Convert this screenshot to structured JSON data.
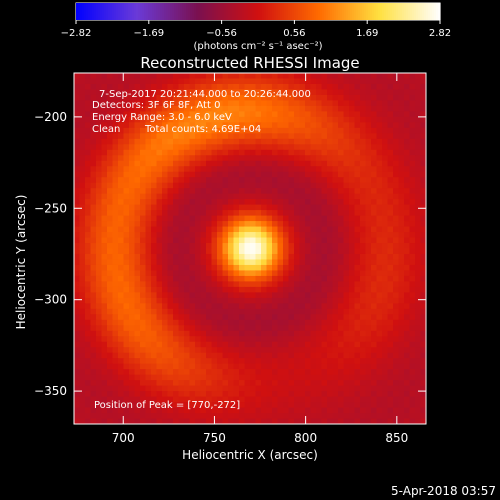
{
  "chart_data": {
    "type": "heatmap",
    "title": "Reconstructed RHESSI Image",
    "xlabel": "Heliocentric X (arcsec)",
    "ylabel": "Heliocentric Y (arcsec)",
    "xlim": [
      673,
      866
    ],
    "ylim": [
      -368,
      -176
    ],
    "x_ticks": [
      700,
      750,
      800,
      850
    ],
    "y_ticks": [
      -200,
      -250,
      -300,
      -350
    ],
    "colorbar": {
      "label": "(photons cm⁻² s⁻¹ asec⁻²)",
      "range": [
        -2.82,
        2.82
      ],
      "ticks": [
        "-2.82",
        "-1.69",
        "-0.56",
        "0.56",
        "1.69",
        "2.82"
      ],
      "colors": [
        "#0000ff",
        "#6a3ad8",
        "#7a1050",
        "#d01010",
        "#ff6a00",
        "#ffe040",
        "#ffffff"
      ]
    },
    "annotations": [
      "7-Sep-2017 20:21:44.000 to 20:26:44.000",
      "Detectors: 3F 6F 8F, Att 0",
      "Energy Range: 3.0 - 6.0 keV",
      "Clean",
      "Total counts: 4.69E+04"
    ],
    "peak_label": "Position of Peak = [770,-272]",
    "peak": {
      "x": 770,
      "y": -272,
      "value": 2.82
    },
    "components": [
      {
        "kind": "source",
        "x": 770,
        "y": -272,
        "amplitude": 2.82
      },
      {
        "kind": "ring",
        "x": 770,
        "y": -272,
        "radius_arcsec": 75,
        "amplitude": 1.15
      },
      {
        "kind": "trough",
        "x": 770,
        "y": -272,
        "radius_arcsec": 40,
        "amplitude": -0.45
      }
    ]
  },
  "timestamp": "5-Apr-2018 03:57"
}
